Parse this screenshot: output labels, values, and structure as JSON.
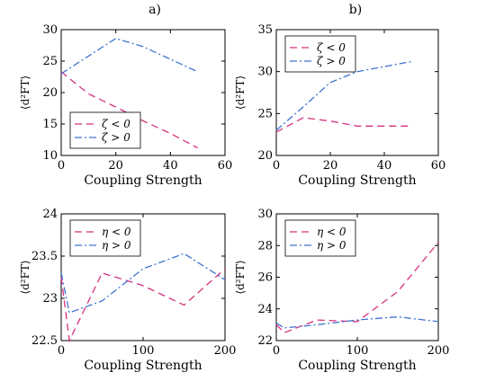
{
  "colors": {
    "neg": "#d6307f",
    "pos": "#3f74d0"
  },
  "col_titles": [
    "a)",
    "b)"
  ],
  "chart_data": [
    {
      "type": "line",
      "panel": "top-left",
      "xlabel": "Coupling Strength",
      "ylabel": "⟨d²FT⟩",
      "xlim": [
        0,
        60
      ],
      "ylim": [
        10,
        30
      ],
      "xticks": [
        0,
        20,
        40,
        60
      ],
      "yticks": [
        10,
        15,
        20,
        25,
        30
      ],
      "legend_position": "bottom-left",
      "series": [
        {
          "name": "ζ < 0",
          "style": "dashed",
          "color": "neg",
          "x": [
            0,
            10,
            20,
            30,
            40,
            50
          ],
          "y": [
            23.3,
            19.8,
            17.7,
            15.5,
            13.5,
            11.2
          ]
        },
        {
          "name": "ζ > 0",
          "style": "dashdot",
          "color": "pos",
          "x": [
            0,
            10,
            20,
            30,
            40,
            50
          ],
          "y": [
            23.0,
            25.8,
            28.6,
            27.3,
            25.3,
            23.3
          ]
        }
      ]
    },
    {
      "type": "line",
      "panel": "top-right",
      "xlabel": "Coupling Strength",
      "ylabel": "⟨d²FT⟩",
      "xlim": [
        0,
        60
      ],
      "ylim": [
        20,
        35
      ],
      "xticks": [
        0,
        20,
        40,
        60
      ],
      "yticks": [
        20,
        25,
        30,
        35
      ],
      "legend_position": "top-left",
      "series": [
        {
          "name": "ζ < 0",
          "style": "dashed",
          "color": "neg",
          "x": [
            0,
            10,
            20,
            30,
            40,
            50
          ],
          "y": [
            22.8,
            24.5,
            24.1,
            23.5,
            23.5,
            23.5
          ]
        },
        {
          "name": "ζ > 0",
          "style": "dashdot",
          "color": "pos",
          "x": [
            0,
            10,
            20,
            30,
            40,
            50
          ],
          "y": [
            23.0,
            25.8,
            28.7,
            30.0,
            30.6,
            31.2
          ]
        }
      ]
    },
    {
      "type": "line",
      "panel": "bottom-left",
      "xlabel": "Coupling Strength",
      "ylabel": "⟨d²FT⟩",
      "xlim": [
        0,
        200
      ],
      "ylim": [
        22.5,
        24
      ],
      "xticks": [
        0,
        100,
        200
      ],
      "yticks": [
        22.5,
        23,
        23.5,
        24
      ],
      "legend_position": "top-left",
      "series": [
        {
          "name": "η < 0",
          "style": "dashed",
          "color": "neg",
          "x": [
            0,
            10,
            50,
            100,
            150,
            200
          ],
          "y": [
            23.25,
            22.5,
            23.3,
            23.15,
            22.92,
            23.35
          ]
        },
        {
          "name": "η > 0",
          "style": "dashdot",
          "color": "pos",
          "x": [
            0,
            10,
            50,
            100,
            150,
            200
          ],
          "y": [
            23.3,
            22.83,
            22.97,
            23.35,
            23.53,
            23.22
          ]
        }
      ]
    },
    {
      "type": "line",
      "panel": "bottom-right",
      "xlabel": "Coupling Strength",
      "ylabel": "⟨d²FT⟩",
      "xlim": [
        0,
        200
      ],
      "ylim": [
        22,
        30
      ],
      "xticks": [
        0,
        100,
        200
      ],
      "yticks": [
        22,
        24,
        26,
        28,
        30
      ],
      "legend_position": "top-left",
      "series": [
        {
          "name": "η < 0",
          "style": "dashed",
          "color": "neg",
          "x": [
            0,
            10,
            50,
            100,
            150,
            200
          ],
          "y": [
            23.0,
            22.5,
            23.3,
            23.2,
            25.1,
            28.2
          ]
        },
        {
          "name": "η > 0",
          "style": "dashdot",
          "color": "pos",
          "x": [
            0,
            10,
            50,
            100,
            150,
            200
          ],
          "y": [
            23.1,
            22.8,
            23.0,
            23.3,
            23.5,
            23.2
          ]
        }
      ]
    }
  ]
}
